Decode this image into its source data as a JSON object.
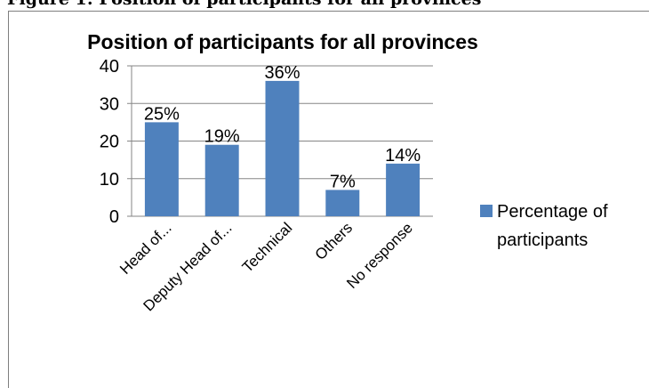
{
  "caption": "Figure 1: Position of participants for all provinces",
  "chart_data": {
    "type": "bar",
    "title": "Position of participants for all provinces",
    "categories": [
      "Head of...",
      "Deputy Head of...",
      "Technical",
      "Others",
      "No response"
    ],
    "series": [
      {
        "name": "Percentage of participants",
        "values": [
          25,
          19,
          36,
          7,
          14
        ],
        "data_labels": [
          "25%",
          "19%",
          "36%",
          "7%",
          "14%"
        ],
        "color": "#4f81bd"
      }
    ],
    "ylim": [
      0,
      40
    ],
    "yticks": [
      0,
      10,
      20,
      30,
      40
    ],
    "grid": true,
    "legend": "right",
    "legend_lines": [
      "Percentage of",
      "participants"
    ]
  }
}
